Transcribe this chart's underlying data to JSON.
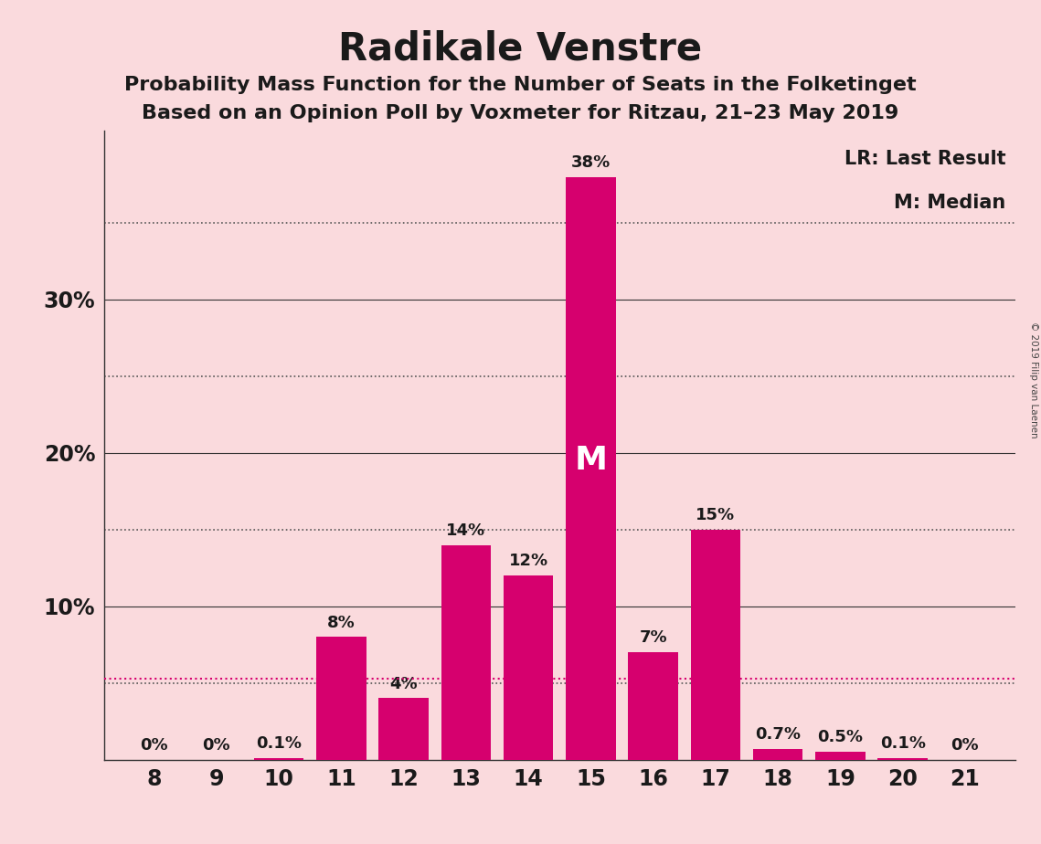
{
  "title": "Radikale Venstre",
  "subtitle1": "Probability Mass Function for the Number of Seats in the Folketinget",
  "subtitle2": "Based on an Opinion Poll by Voxmeter for Ritzau, 21–23 May 2019",
  "copyright": "© 2019 Filip van Laenen",
  "seats": [
    8,
    9,
    10,
    11,
    12,
    13,
    14,
    15,
    16,
    17,
    18,
    19,
    20,
    21
  ],
  "probabilities": [
    0.0,
    0.0,
    0.1,
    8.0,
    4.0,
    14.0,
    12.0,
    38.0,
    7.0,
    15.0,
    0.7,
    0.5,
    0.1,
    0.0
  ],
  "labels": [
    "0%",
    "0%",
    "0.1%",
    "8%",
    "4%",
    "14%",
    "12%",
    "38%",
    "7%",
    "15%",
    "0.7%",
    "0.5%",
    "0.1%",
    "0%"
  ],
  "bar_color": "#D6006E",
  "background_color": "#FADADD",
  "text_color": "#1a1a1a",
  "title_fontsize": 30,
  "subtitle_fontsize": 16,
  "label_fontsize": 13,
  "tick_fontsize": 17,
  "legend_fontsize": 15,
  "median_seat": 15,
  "median_label": "M",
  "lr_value": 5.3,
  "lr_label": "LR",
  "ylim": [
    0,
    41
  ],
  "solid_hlines": [
    10.0,
    20.0,
    30.0
  ],
  "dotted_hlines": [
    5.0,
    15.0,
    25.0,
    35.0
  ],
  "yticks": [
    10,
    20,
    30
  ],
  "ytick_labels": [
    "10%",
    "20%",
    "30%"
  ],
  "legend_text1": "LR: Last Result",
  "legend_text2": "M: Median",
  "bar_width": 0.8
}
